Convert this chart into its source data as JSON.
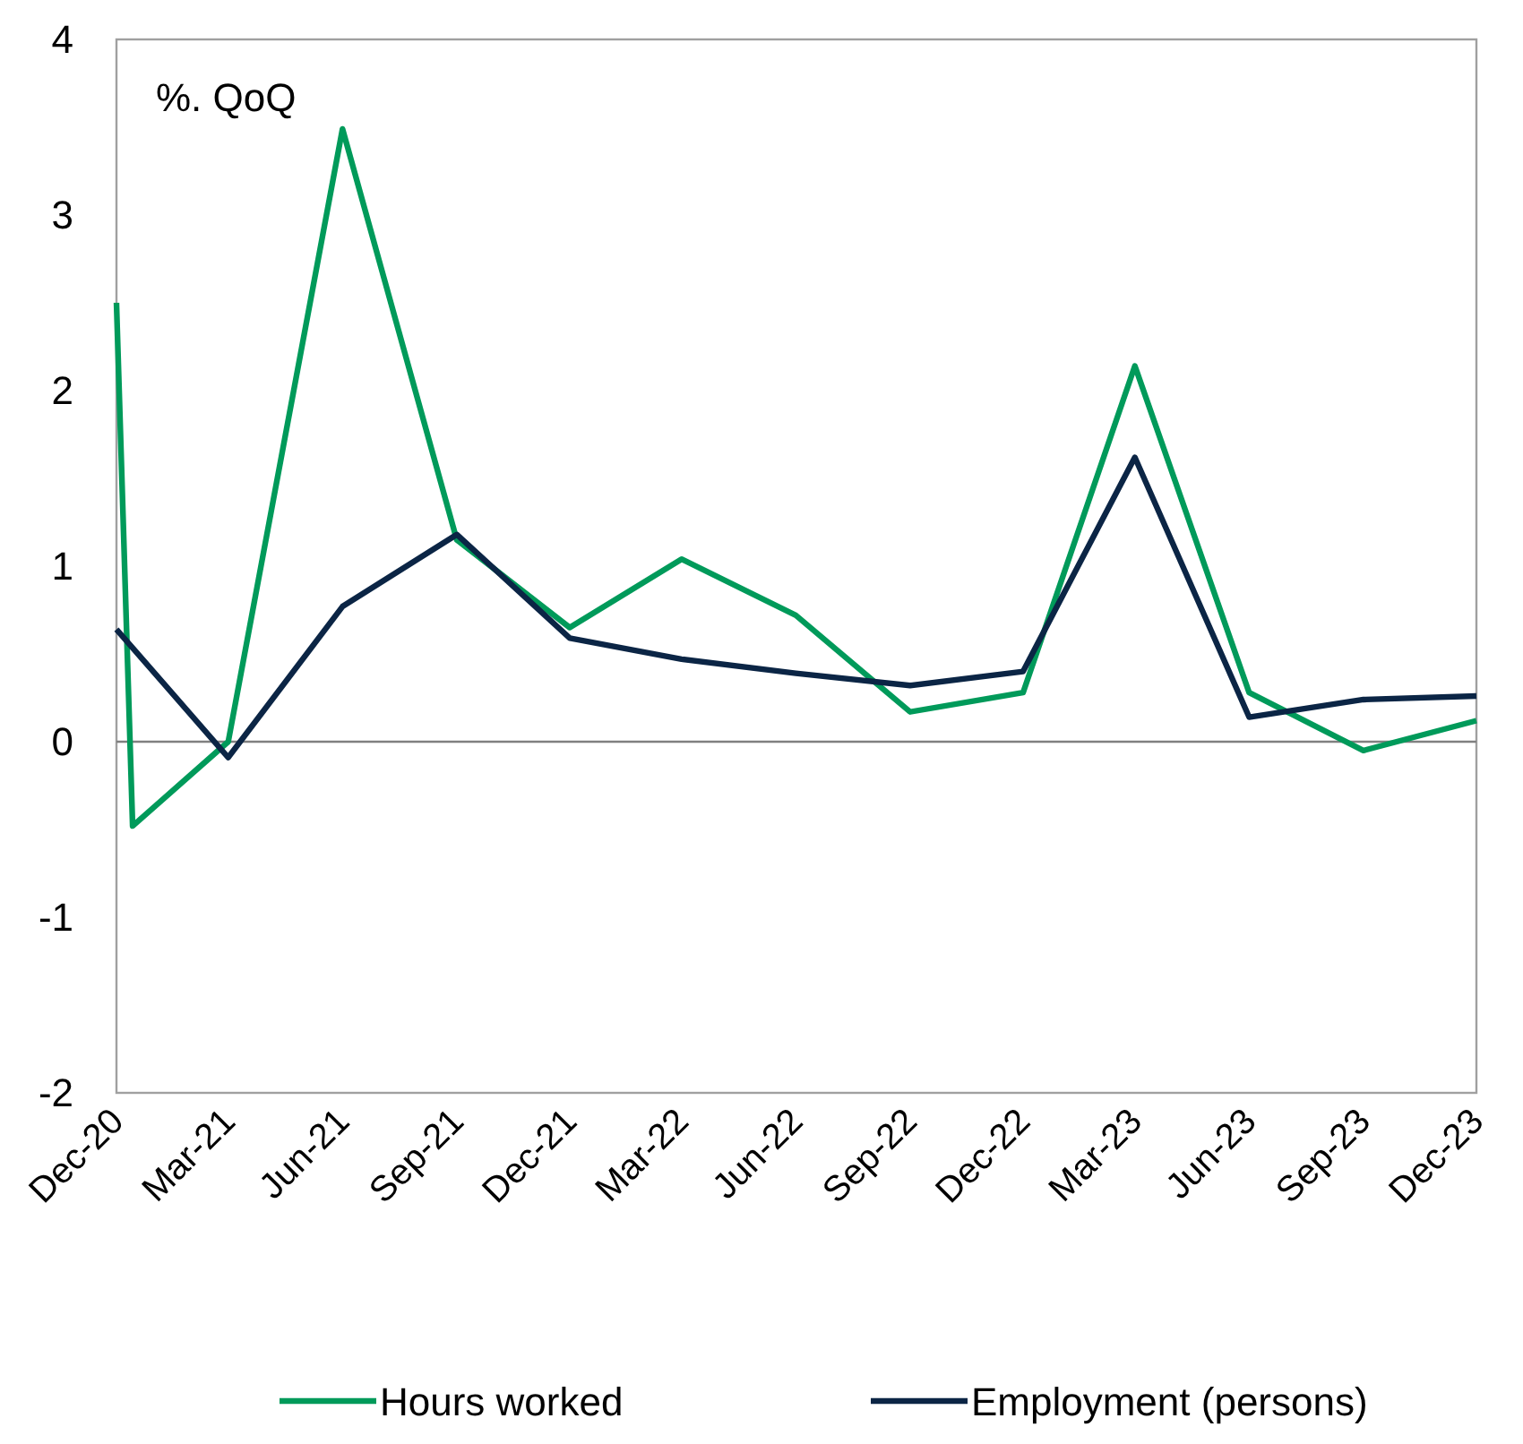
{
  "chart_data": {
    "type": "line",
    "annotations": [
      "%. QoQ"
    ],
    "x": [
      "2020-12",
      "2021-03",
      "2021-06",
      "2021-09",
      "2021-12",
      "2022-03",
      "2022-06",
      "2022-09",
      "2022-12",
      "2023-03",
      "2023-06",
      "2023-09",
      "2023-12"
    ],
    "series": [
      {
        "name": "Hours worked",
        "color": "#009a5a",
        "x": [
          "2020-12",
          "2020-12-14",
          "2021-03",
          "2021-06",
          "2021-09",
          "2021-12",
          "2022-03",
          "2022-06",
          "2022-09",
          "2022-12",
          "2023-03",
          "2023-06",
          "2023-09",
          "2023-12"
        ],
        "values": [
          2.5,
          -0.48,
          0.0,
          3.49,
          1.15,
          0.65,
          1.04,
          0.72,
          0.17,
          0.28,
          2.14,
          0.28,
          -0.05,
          0.12
        ]
      },
      {
        "name": "Employment (persons)",
        "color": "#0b2545",
        "values": [
          0.64,
          -0.09,
          0.77,
          1.18,
          0.59,
          0.47,
          0.39,
          0.32,
          0.4,
          1.62,
          0.14,
          0.24,
          0.26
        ]
      }
    ],
    "xlim": [
      "2020-12",
      "2023-12"
    ],
    "xticks": [
      {
        "value": "2020-12",
        "label": "Dec-20"
      },
      {
        "value": "2021-03",
        "label": "Mar-21"
      },
      {
        "value": "2021-06",
        "label": "Jun-21"
      },
      {
        "value": "2021-09",
        "label": "Sep-21"
      },
      {
        "value": "2021-12",
        "label": "Dec-21"
      },
      {
        "value": "2022-03",
        "label": "Mar-22"
      },
      {
        "value": "2022-06",
        "label": "Jun-22"
      },
      {
        "value": "2022-09",
        "label": "Sep-22"
      },
      {
        "value": "2022-12",
        "label": "Dec-22"
      },
      {
        "value": "2023-03",
        "label": "Mar-23"
      },
      {
        "value": "2023-06",
        "label": "Jun-23"
      },
      {
        "value": "2023-09",
        "label": "Sep-23"
      },
      {
        "value": "2023-12",
        "label": "Dec-23"
      }
    ],
    "ylim": [
      -2,
      4
    ],
    "yticks": [
      -2,
      -1,
      0,
      1,
      2,
      3,
      4
    ],
    "ref_lines": [
      {
        "axis": "y",
        "value": 0,
        "color": "#808080"
      }
    ],
    "grid": false,
    "legend": "bottom",
    "marker": "none",
    "line_style": "solid"
  }
}
